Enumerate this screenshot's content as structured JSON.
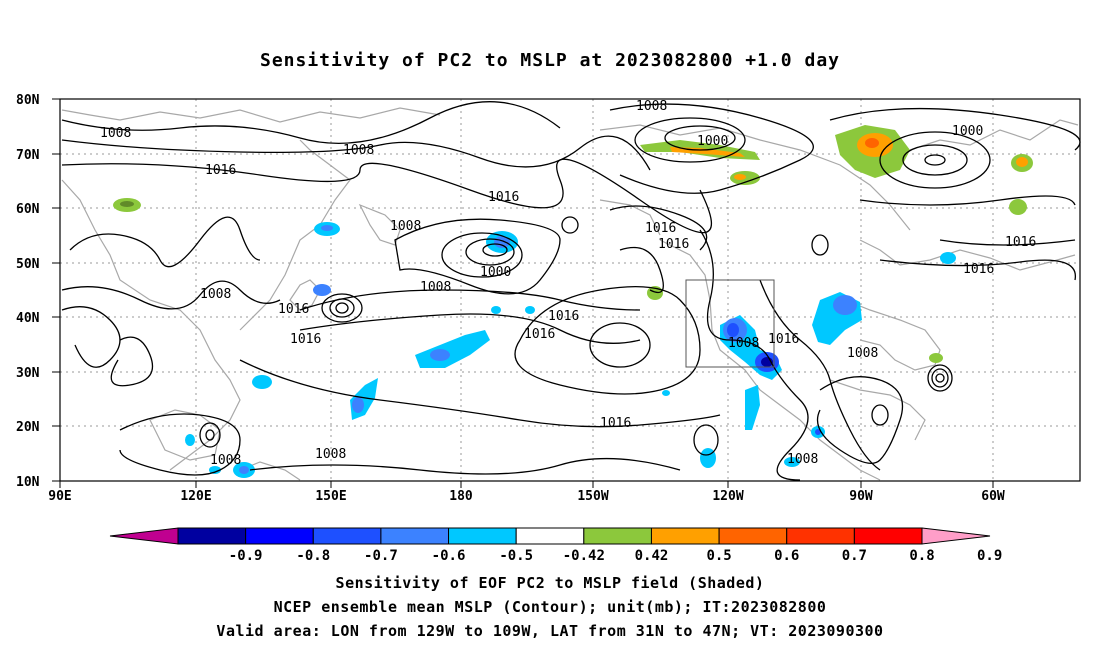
{
  "title": "Sensitivity of PC2 to MSLP at 2023082800 +1.0 day",
  "map": {
    "lat_ticks": [
      "80N",
      "70N",
      "60N",
      "50N",
      "40N",
      "30N",
      "20N",
      "10N"
    ],
    "lon_ticks": [
      "90E",
      "120E",
      "150E",
      "180",
      "150W",
      "120W",
      "90W",
      "60W"
    ],
    "lon_range": "90E to 50W",
    "lat_range": "10N to 80N",
    "grid": "dotted",
    "coastline_color": "#a0a0a0",
    "contour_color": "#000000",
    "contour_labels": [
      "1008",
      "1008",
      "1008",
      "1000",
      "1000",
      "1016",
      "1008",
      "1016",
      "1016",
      "1016",
      "1000",
      "1008",
      "1016",
      "1016",
      "1008",
      "1016",
      "1016",
      "1008",
      "1016",
      "1008",
      "1016",
      "1016",
      "1008",
      "1016",
      "1008",
      "1008"
    ],
    "valid_box": {
      "lon": "129W to 109W",
      "lat": "31N to 47N"
    },
    "positive_color": "#9acd32",
    "negative_color": "#00bfff"
  },
  "colorbar": {
    "labels": [
      "-0.9",
      "-0.8",
      "-0.7",
      "-0.6",
      "-0.5",
      "-0.42",
      "0.42",
      "0.5",
      "0.6",
      "0.7",
      "0.8",
      "0.9"
    ],
    "colors": [
      "#c00090",
      "#0000a0",
      "#0000ff",
      "#1e50ff",
      "#3c82ff",
      "#00c8ff",
      "#ffffff",
      "#8cc83c",
      "#ffa000",
      "#ff6400",
      "#ff3200",
      "#ff0000",
      "#ff9ec8"
    ]
  },
  "captions": [
    "Sensitivity of EOF PC2 to MSLP field (Shaded)",
    "NCEP ensemble mean MSLP (Contour); unit(mb); IT:2023082800",
    "Valid area: LON from 129W to 109W, LAT from 31N to 47N; VT: 2023090300"
  ]
}
